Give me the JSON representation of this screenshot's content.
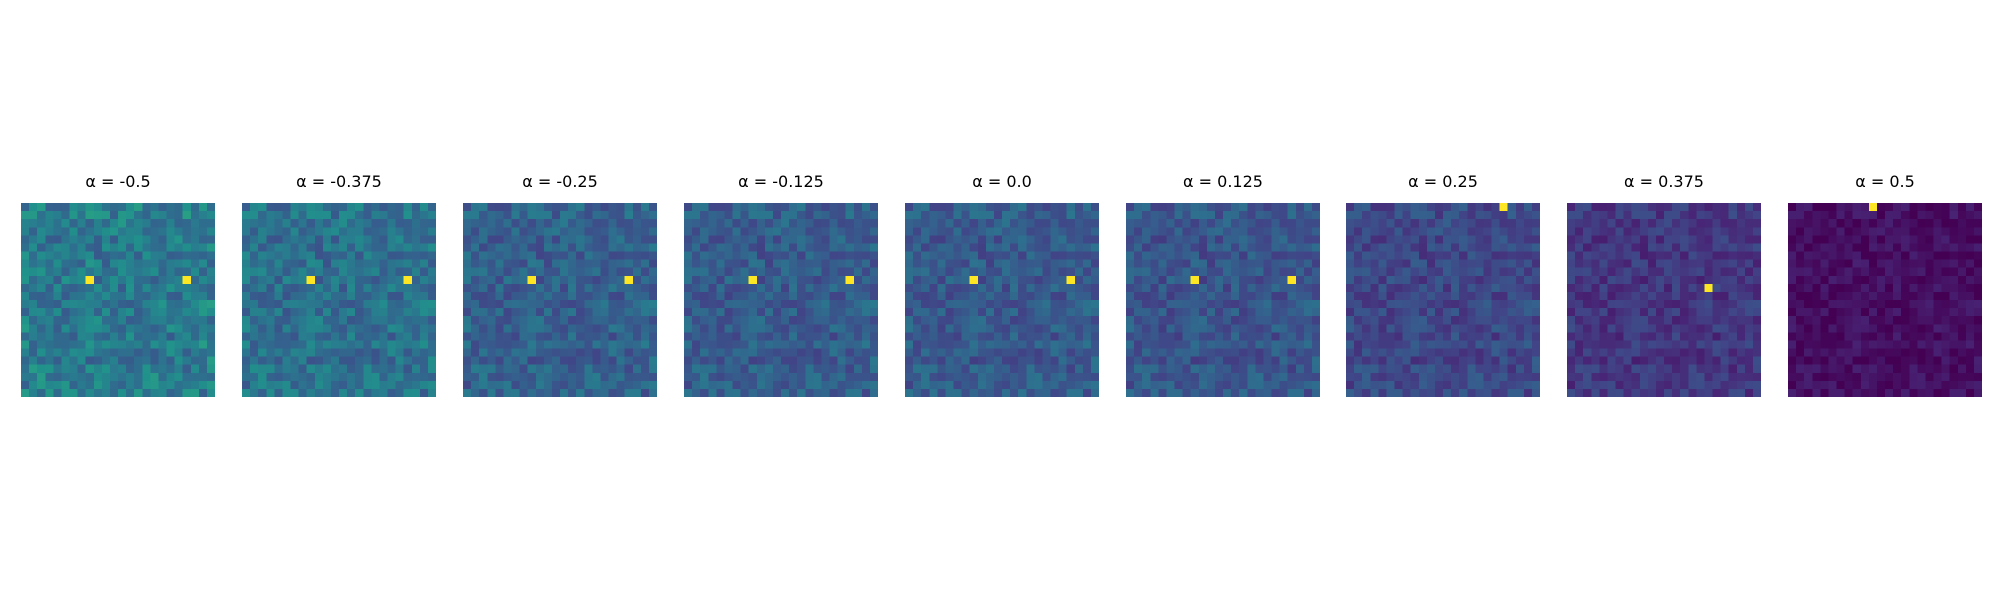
{
  "chart_data": {
    "type": "heatmap",
    "colormap": "viridis",
    "grid_size": 24,
    "axes_visible": false,
    "panels": [
      {
        "title": "α = -0.5",
        "alpha": -0.5,
        "mean_level": 0.5,
        "bright_cells": [
          [
            9,
            8
          ],
          [
            9,
            20
          ]
        ]
      },
      {
        "title": "α = -0.375",
        "alpha": -0.375,
        "mean_level": 0.46,
        "bright_cells": [
          [
            9,
            8
          ],
          [
            9,
            20
          ]
        ]
      },
      {
        "title": "α = -0.25",
        "alpha": -0.25,
        "mean_level": 0.38,
        "bright_cells": [
          [
            9,
            8
          ],
          [
            9,
            20
          ]
        ]
      },
      {
        "title": "α = -0.125",
        "alpha": -0.125,
        "mean_level": 0.36,
        "bright_cells": [
          [
            9,
            8
          ],
          [
            9,
            20
          ]
        ]
      },
      {
        "title": "α = 0.0",
        "alpha": 0.0,
        "mean_level": 0.35,
        "bright_cells": [
          [
            9,
            8
          ],
          [
            9,
            20
          ]
        ]
      },
      {
        "title": "α = 0.125",
        "alpha": 0.125,
        "mean_level": 0.33,
        "bright_cells": [
          [
            9,
            8
          ],
          [
            9,
            20
          ]
        ]
      },
      {
        "title": "α = 0.25",
        "alpha": 0.25,
        "mean_level": 0.27,
        "bright_cells": [
          [
            0,
            19
          ]
        ]
      },
      {
        "title": "α = 0.375",
        "alpha": 0.375,
        "mean_level": 0.2,
        "bright_cells": [
          [
            10,
            17
          ]
        ]
      },
      {
        "title": "α = 0.5",
        "alpha": 0.5,
        "mean_level": 0.05,
        "bright_cells": [
          [
            0,
            10
          ]
        ]
      }
    ]
  }
}
